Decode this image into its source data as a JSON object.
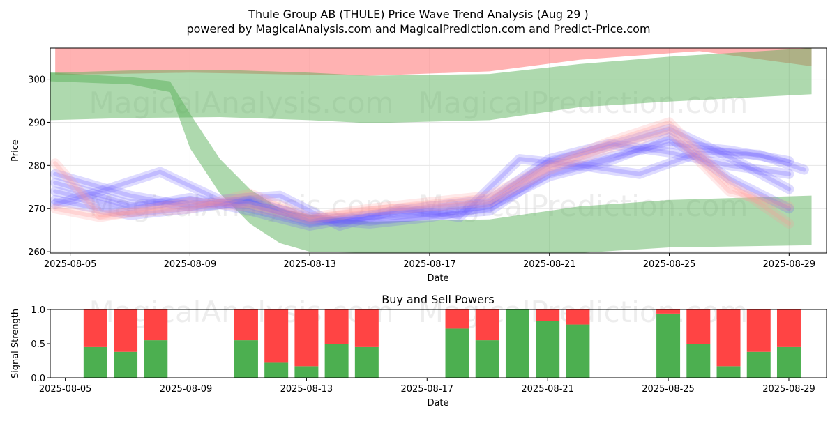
{
  "header": {
    "title": "Thule Group AB (THULE) Price Wave Trend Analysis (Aug 29 )",
    "subtitle": "powered by MagicalAnalysis.com and MagicalPrediction.com and Predict-Price.com"
  },
  "watermarks": [
    "MagicalAnalysis.com",
    "MagicalPrediction.com"
  ],
  "chart_data": [
    {
      "type": "area",
      "title": "",
      "xlabel": "Date",
      "ylabel": "Price",
      "xlim": [
        "2025-08-04T08:00",
        "2025-08-30T06:00"
      ],
      "ylim": [
        259.7,
        307.2
      ],
      "yticks": [
        260,
        270,
        280,
        290,
        300
      ],
      "xticks": [
        "2025-08-05",
        "2025-08-09",
        "2025-08-13",
        "2025-08-17",
        "2025-08-21",
        "2025-08-25",
        "2025-08-29"
      ],
      "grid": true,
      "colors": {
        "red_band": "#ff6666",
        "green_band": "#66bb66",
        "blue_wave": "#6a5aff",
        "pink_wave": "#ff9999"
      },
      "bands": [
        {
          "color": "red",
          "x": [
            "2025-08-04T12:00",
            "2025-08-09",
            "2025-08-15",
            "2025-08-19",
            "2025-08-22",
            "2025-08-26",
            "2025-08-29T18:00"
          ],
          "upper": [
            307.2,
            307.2,
            307.2,
            307.2,
            307.2,
            307.2,
            307.2
          ],
          "lower": [
            301,
            301.5,
            300.8,
            301.8,
            304.5,
            306.5,
            303
          ]
        },
        {
          "color": "green",
          "x": [
            "2025-08-04T08:00",
            "2025-08-07",
            "2025-08-10",
            "2025-08-13",
            "2025-08-15",
            "2025-08-19",
            "2025-08-22",
            "2025-08-25",
            "2025-08-29T18:00"
          ],
          "upper": [
            301.5,
            302,
            302.2,
            301.5,
            300.8,
            301.2,
            303.5,
            305.2,
            307.2
          ],
          "lower": [
            290.5,
            291,
            291.2,
            290.5,
            289.8,
            290.5,
            293.5,
            294.8,
            296.5
          ]
        },
        {
          "color": "green",
          "x": [
            "2025-08-04T08:00",
            "2025-08-07",
            "2025-08-08T08:00",
            "2025-08-09",
            "2025-08-10",
            "2025-08-11",
            "2025-08-12",
            "2025-08-13",
            "2025-08-15",
            "2025-08-19",
            "2025-08-22",
            "2025-08-25",
            "2025-08-29T18:00"
          ],
          "upper": [
            301.5,
            300.5,
            299.5,
            292,
            281.5,
            274.5,
            270,
            268.5,
            267,
            267.5,
            270.5,
            272,
            273
          ],
          "lower": [
            299.5,
            298.8,
            297,
            284,
            273.5,
            266.5,
            262,
            260,
            259.7,
            259.7,
            259.7,
            261,
            261.5
          ]
        }
      ],
      "series": [
        {
          "color": "blue",
          "x": [
            "2025-08-04T12:00",
            "2025-08-07",
            "2025-08-09",
            "2025-08-11",
            "2025-08-13",
            "2025-08-15",
            "2025-08-17",
            "2025-08-19",
            "2025-08-21",
            "2025-08-23",
            "2025-08-25",
            "2025-08-27",
            "2025-08-29"
          ],
          "y": [
            276,
            271,
            271.5,
            271,
            267,
            268.5,
            269.5,
            271,
            280.5,
            284.5,
            288.5,
            282,
            274.5
          ]
        },
        {
          "color": "blue",
          "x": [
            "2025-08-04T12:00",
            "2025-08-07",
            "2025-08-09",
            "2025-08-11",
            "2025-08-13",
            "2025-08-15",
            "2025-08-17",
            "2025-08-19",
            "2025-08-21",
            "2025-08-23",
            "2025-08-25",
            "2025-08-27",
            "2025-08-29"
          ],
          "y": [
            278,
            273,
            270.5,
            271.5,
            268,
            267.5,
            268.5,
            269.5,
            278.5,
            282,
            285,
            283.5,
            281
          ]
        },
        {
          "color": "blue",
          "x": [
            "2025-08-04T12:00",
            "2025-08-07",
            "2025-08-09",
            "2025-08-11",
            "2025-08-13",
            "2025-08-15",
            "2025-08-17",
            "2025-08-19",
            "2025-08-21",
            "2025-08-23",
            "2025-08-25",
            "2025-08-27",
            "2025-08-29"
          ],
          "y": [
            274,
            270,
            272.5,
            269.5,
            266,
            268.5,
            270.5,
            272,
            281.5,
            285,
            283,
            280,
            278
          ]
        },
        {
          "color": "blue",
          "x": [
            "2025-08-04T12:00",
            "2025-08-07",
            "2025-08-09",
            "2025-08-11",
            "2025-08-13",
            "2025-08-15",
            "2025-08-17",
            "2025-08-19",
            "2025-08-21",
            "2025-08-23",
            "2025-08-25",
            "2025-08-27",
            "2025-08-29"
          ],
          "y": [
            272,
            268.5,
            270,
            272,
            267.5,
            266.5,
            268,
            270.5,
            277.5,
            281,
            286.5,
            277,
            270
          ]
        },
        {
          "color": "blue",
          "x": [
            "2025-08-04T12:00",
            "2025-08-06",
            "2025-08-08",
            "2025-08-10",
            "2025-08-12",
            "2025-08-14",
            "2025-08-16",
            "2025-08-18",
            "2025-08-20",
            "2025-08-22",
            "2025-08-24",
            "2025-08-26",
            "2025-08-28",
            "2025-08-29T12:00"
          ],
          "y": [
            271,
            274,
            278.5,
            272,
            273,
            266,
            270,
            268,
            281.5,
            280,
            278,
            283,
            282.5,
            279
          ]
        },
        {
          "color": "pink",
          "x": [
            "2025-08-04T12:00",
            "2025-08-06",
            "2025-08-09",
            "2025-08-11",
            "2025-08-13",
            "2025-08-15",
            "2025-08-17",
            "2025-08-19",
            "2025-08-21",
            "2025-08-23",
            "2025-08-25",
            "2025-08-27",
            "2025-08-29"
          ],
          "y": [
            280.5,
            268.5,
            270,
            273.5,
            268,
            270,
            271.5,
            273,
            280,
            285.5,
            290,
            276,
            266.5
          ]
        },
        {
          "color": "pink",
          "x": [
            "2025-08-04T12:00",
            "2025-08-06",
            "2025-08-09",
            "2025-08-11",
            "2025-08-13",
            "2025-08-15",
            "2025-08-17",
            "2025-08-19",
            "2025-08-21",
            "2025-08-23",
            "2025-08-25",
            "2025-08-27",
            "2025-08-29"
          ],
          "y": [
            270,
            268,
            271.5,
            270.5,
            267.5,
            269.5,
            270.5,
            271.5,
            279,
            284,
            288,
            274,
            270.5
          ]
        }
      ]
    },
    {
      "type": "bar",
      "title": "Buy and Sell Powers",
      "xlabel": "Date",
      "ylabel": "Signal Strength",
      "ylim": [
        0,
        1
      ],
      "yticks": [
        "0.0",
        "0.5",
        "1.0"
      ],
      "xticks": [
        "2025-08-05",
        "2025-08-09",
        "2025-08-13",
        "2025-08-17",
        "2025-08-21",
        "2025-08-25",
        "2025-08-29"
      ],
      "xlim": [
        "2025-08-04T12:00",
        "2025-08-30T06:00"
      ],
      "colors": {
        "buy": "#4caf50",
        "sell": "#ff4444"
      },
      "series": [
        {
          "name": "buy",
          "x": [
            "2025-08-06",
            "2025-08-07",
            "2025-08-08",
            "2025-08-11",
            "2025-08-12",
            "2025-08-13",
            "2025-08-14",
            "2025-08-15",
            "2025-08-18",
            "2025-08-19",
            "2025-08-20",
            "2025-08-21",
            "2025-08-22",
            "2025-08-25",
            "2025-08-26",
            "2025-08-27",
            "2025-08-28",
            "2025-08-29"
          ],
          "values": [
            0.45,
            0.38,
            0.55,
            0.55,
            0.22,
            0.17,
            0.5,
            0.45,
            0.72,
            0.55,
            1.0,
            0.83,
            0.78,
            0.94,
            0.5,
            0.17,
            0.38,
            0.45
          ]
        },
        {
          "name": "sell",
          "x": [
            "2025-08-06",
            "2025-08-07",
            "2025-08-08",
            "2025-08-11",
            "2025-08-12",
            "2025-08-13",
            "2025-08-14",
            "2025-08-15",
            "2025-08-18",
            "2025-08-19",
            "2025-08-20",
            "2025-08-21",
            "2025-08-22",
            "2025-08-25",
            "2025-08-26",
            "2025-08-27",
            "2025-08-28",
            "2025-08-29"
          ],
          "values": [
            0.55,
            0.62,
            0.45,
            0.45,
            0.78,
            0.83,
            0.5,
            0.55,
            0.28,
            0.45,
            0.0,
            0.17,
            0.22,
            0.06,
            0.5,
            0.83,
            0.62,
            0.55
          ]
        }
      ]
    }
  ]
}
